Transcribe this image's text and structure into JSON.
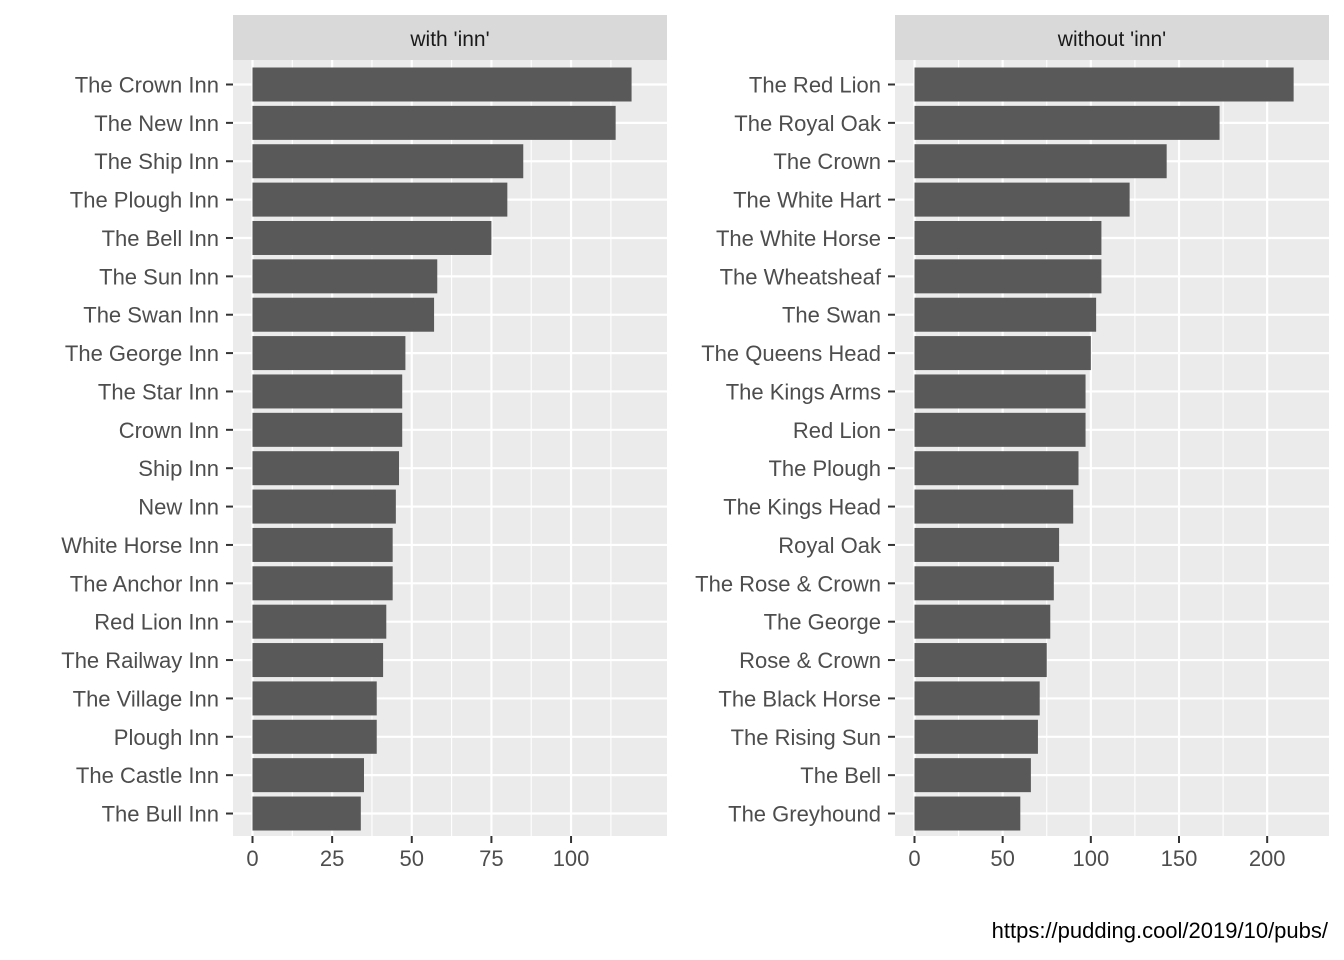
{
  "colors": {
    "panel_background": "#EBEBEB",
    "strip_background": "#D9D9D9",
    "grid": "#FFFFFF",
    "bar": "#595959",
    "axis_text": "#4D4D4D",
    "tick": "#333333",
    "strip_text": "#1A1A1A"
  },
  "caption": "https://pudding.cool/2019/10/pubs/",
  "chart_data": [
    {
      "type": "bar",
      "orientation": "horizontal",
      "title": "with 'inn'",
      "xlabel": "",
      "ylabel": "",
      "xlim": [
        0,
        124
      ],
      "ticks": [
        0,
        25,
        50,
        75,
        100
      ],
      "tick_labels": [
        "0",
        "25",
        "50",
        "75",
        "100"
      ],
      "minor_ticks": [
        12.5,
        37.5,
        62.5,
        87.5,
        112.5
      ],
      "grid": true,
      "categories": [
        "The Crown Inn",
        "The New Inn",
        "The Ship Inn",
        "The Plough Inn",
        "The Bell Inn",
        "The Sun Inn",
        "The Swan Inn",
        "The George Inn",
        "The Star Inn",
        "Crown Inn",
        "Ship Inn",
        "New Inn",
        "White Horse Inn",
        "The Anchor Inn",
        "Red Lion Inn",
        "The Railway Inn",
        "The Village Inn",
        "Plough Inn",
        "The Castle Inn",
        "The Bull Inn"
      ],
      "values": [
        119,
        114,
        85,
        80,
        75,
        58,
        57,
        48,
        47,
        47,
        46,
        45,
        44,
        44,
        42,
        41,
        39,
        39,
        35,
        34
      ]
    },
    {
      "type": "bar",
      "orientation": "horizontal",
      "title": "without 'inn'",
      "xlabel": "",
      "ylabel": "",
      "xlim": [
        0,
        224
      ],
      "ticks": [
        0,
        50,
        100,
        150,
        200
      ],
      "tick_labels": [
        "0",
        "50",
        "100",
        "150",
        "200"
      ],
      "minor_ticks": [
        25,
        75,
        125,
        175
      ],
      "grid": true,
      "categories": [
        "The Red Lion",
        "The Royal Oak",
        "The Crown",
        "The White Hart",
        "The White Horse",
        "The Wheatsheaf",
        "The Swan",
        "The Queens Head",
        "The Kings Arms",
        "Red Lion",
        "The Plough",
        "The Kings Head",
        "Royal Oak",
        "The Rose & Crown",
        "The George",
        "Rose & Crown",
        "The Black Horse",
        "The Rising Sun",
        "The Bell",
        "The Greyhound"
      ],
      "values": [
        215,
        173,
        143,
        122,
        106,
        106,
        103,
        100,
        97,
        97,
        93,
        90,
        82,
        79,
        77,
        75,
        71,
        70,
        66,
        60
      ]
    }
  ]
}
